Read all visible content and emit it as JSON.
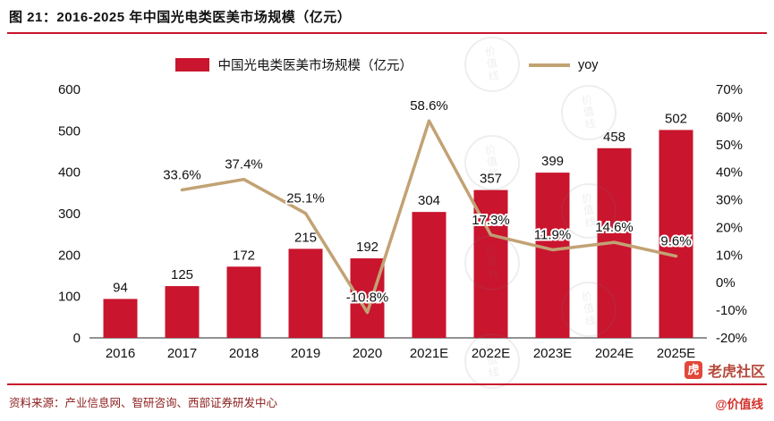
{
  "header": {
    "title": "图 21：2016-2025 年中国光电类医美市场规模（亿元）"
  },
  "legend": {
    "bar_label": "中国光电类医美市场规模（亿元）",
    "line_label": "yoy"
  },
  "chart_data": {
    "type": "bar",
    "subtype": "bar-with-line-overlay",
    "title": "2016-2025 年中国光电类医美市场规模（亿元）",
    "categories": [
      "2016",
      "2017",
      "2018",
      "2019",
      "2020",
      "2021E",
      "2022E",
      "2023E",
      "2024E",
      "2025E"
    ],
    "series": [
      {
        "name": "中国光电类医美市场规模（亿元）",
        "type": "bar",
        "axis": "left",
        "values": [
          94,
          125,
          172,
          215,
          192,
          304,
          357,
          399,
          458,
          502
        ],
        "color": "#c9152e"
      },
      {
        "name": "yoy",
        "type": "line",
        "axis": "right",
        "x_start_index": 1,
        "values": [
          33.6,
          37.4,
          25.1,
          -10.8,
          58.6,
          17.3,
          11.9,
          14.6,
          9.6
        ],
        "labels": [
          "33.6%",
          "37.4%",
          "25.1%",
          "-10.8%",
          "58.6%",
          "17.3%",
          "11.9%",
          "14.6%",
          "9.6%"
        ],
        "color": "#c2a274"
      }
    ],
    "left_axis": {
      "min": 0,
      "max": 600,
      "step": 100,
      "ticks": [
        "600",
        "500",
        "400",
        "300",
        "200",
        "100",
        "0"
      ]
    },
    "right_axis": {
      "min": -20,
      "max": 70,
      "step": 10,
      "ticks": [
        "70%",
        "60%",
        "50%",
        "40%",
        "30%",
        "20%",
        "10%",
        "0%",
        "-10%",
        "-20%"
      ]
    },
    "grid": false,
    "legend_position": "top"
  },
  "footer": {
    "source": "资料来源：产业信息网、智研咨询、西部证券研发中心"
  },
  "branding": {
    "logo_text": "老虎社区",
    "handle": "@价值线",
    "watermark": "价值线"
  },
  "colors": {
    "bar": "#c9152e",
    "line": "#c2a274",
    "rule": "#c9152e",
    "source_text": "#8c1c1c"
  }
}
